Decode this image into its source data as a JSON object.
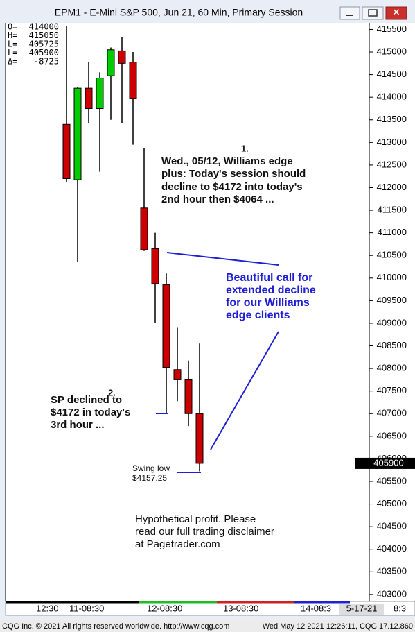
{
  "window_title": "EPM1 - E-Mini S&P 500, Jun 21, 60 Min, Primary Session",
  "chart_data": {
    "type": "candlestick",
    "categories": [
      null,
      null,
      null,
      null,
      null,
      null,
      null,
      null,
      null,
      null,
      null,
      null,
      null
    ],
    "open": [
      413400,
      412175,
      414200,
      413750,
      414475,
      415025,
      414775,
      411550,
      410650,
      409850,
      407975,
      407750,
      407000
    ],
    "high": [
      415575,
      414225,
      414775,
      414550,
      415100,
      415325,
      415000,
      412875,
      411000,
      410100,
      408900,
      408175,
      408550
    ],
    "low": [
      412125,
      410350,
      413425,
      412350,
      413500,
      413425,
      412950,
      410600,
      409000,
      407000,
      407275,
      406725,
      405725
    ],
    "close": [
      412200,
      414200,
      413750,
      414425,
      415050,
      414750,
      413975,
      410625,
      409875,
      408025,
      407750,
      407000,
      405900
    ],
    "up_color": "#00cc00",
    "down_color": "#cc0000",
    "ylim": [
      402860,
      415645
    ],
    "yticks": [
      403000,
      403500,
      404000,
      404500,
      405000,
      405500,
      406000,
      406500,
      407000,
      407500,
      408000,
      408500,
      409000,
      409500,
      410000,
      410500,
      411000,
      411500,
      412000,
      412500,
      413000,
      413500,
      414000,
      414500,
      415000,
      415500
    ],
    "last_price": 405900,
    "info_box": [
      {
        "key": "O=",
        "value": 414000
      },
      {
        "key": "H=",
        "value": 415050
      },
      {
        "key": "L=",
        "value": 405725
      },
      {
        "key": "L=",
        "value": 405900
      },
      {
        "key": "Δ=",
        "value": -8725
      }
    ],
    "x_labels": [
      "12:30",
      "11-08:30",
      "12-08:30",
      "13-08:30",
      "14-08:3",
      "5-17-21",
      "8:3"
    ],
    "annotations": {
      "note1_number": "1.",
      "note1": [
        "Wed., 05/12, Williams edge",
        "plus: Today's session should",
        "decline to $4172 into today's",
        "2nd hour then $4064 ..."
      ],
      "callout": [
        "Beautiful call for",
        "extended decline",
        "for our Williams",
        "edge clients"
      ],
      "note2_number": "2.",
      "note2": [
        "SP declined to",
        "$4172 in today's",
        "3rd hour ..."
      ],
      "swing_low": [
        "Swing low",
        "$4157.25"
      ],
      "disclaimer": [
        "Hypothetical profit. Please",
        "read our full trading disclaimer",
        "at Pagetrader.com"
      ]
    }
  },
  "footer": {
    "left": "CQG Inc. © 2021 All rights reserved worldwide. http://www.cqg.com",
    "right": "Wed May 12 2021 12:26:11, CQG 17.12.860"
  }
}
